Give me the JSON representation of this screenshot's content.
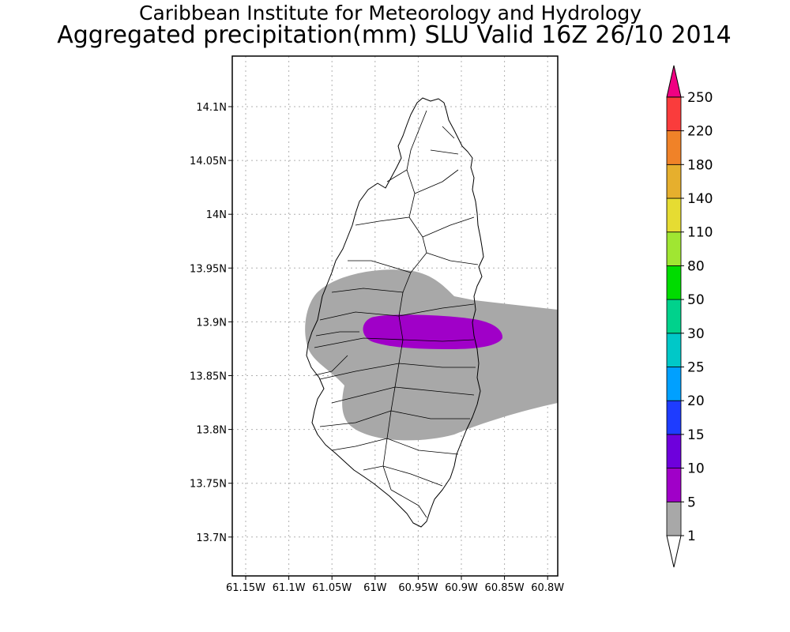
{
  "header": {
    "institution": "Caribbean Institute for Meteorology and Hydrology",
    "product_title": "Aggregated precipitation(mm) SLU Valid 16Z 26/10 2014"
  },
  "map": {
    "region": "Saint Lucia",
    "lat_labels": [
      "14.1N",
      "14.05N",
      "14N",
      "13.95N",
      "13.9N",
      "13.85N",
      "13.8N",
      "13.75N",
      "13.7N"
    ],
    "lon_labels": [
      "61.15W",
      "61.1W",
      "61.05W",
      "61W",
      "60.95W",
      "60.9W",
      "60.85W",
      "60.8W"
    ],
    "gridlines": "dotted",
    "precip_areas": [
      {
        "class": "1-5",
        "description_color": "#a8a8a8"
      },
      {
        "class": "5-10",
        "description_color": "#a000c8"
      }
    ]
  },
  "colorbar": {
    "levels": [
      "1",
      "5",
      "10",
      "15",
      "20",
      "25",
      "30",
      "50",
      "80",
      "110",
      "140",
      "180",
      "220",
      "250"
    ],
    "colors": [
      "#ffffff",
      "#a8a8a8",
      "#a000c8",
      "#6e00dc",
      "#1e3cff",
      "#00a0ff",
      "#00c8c8",
      "#00d28c",
      "#00dc00",
      "#a0e632",
      "#e6dc32",
      "#e6af2d",
      "#f08228",
      "#fa3c3c",
      "#f00082"
    ]
  }
}
